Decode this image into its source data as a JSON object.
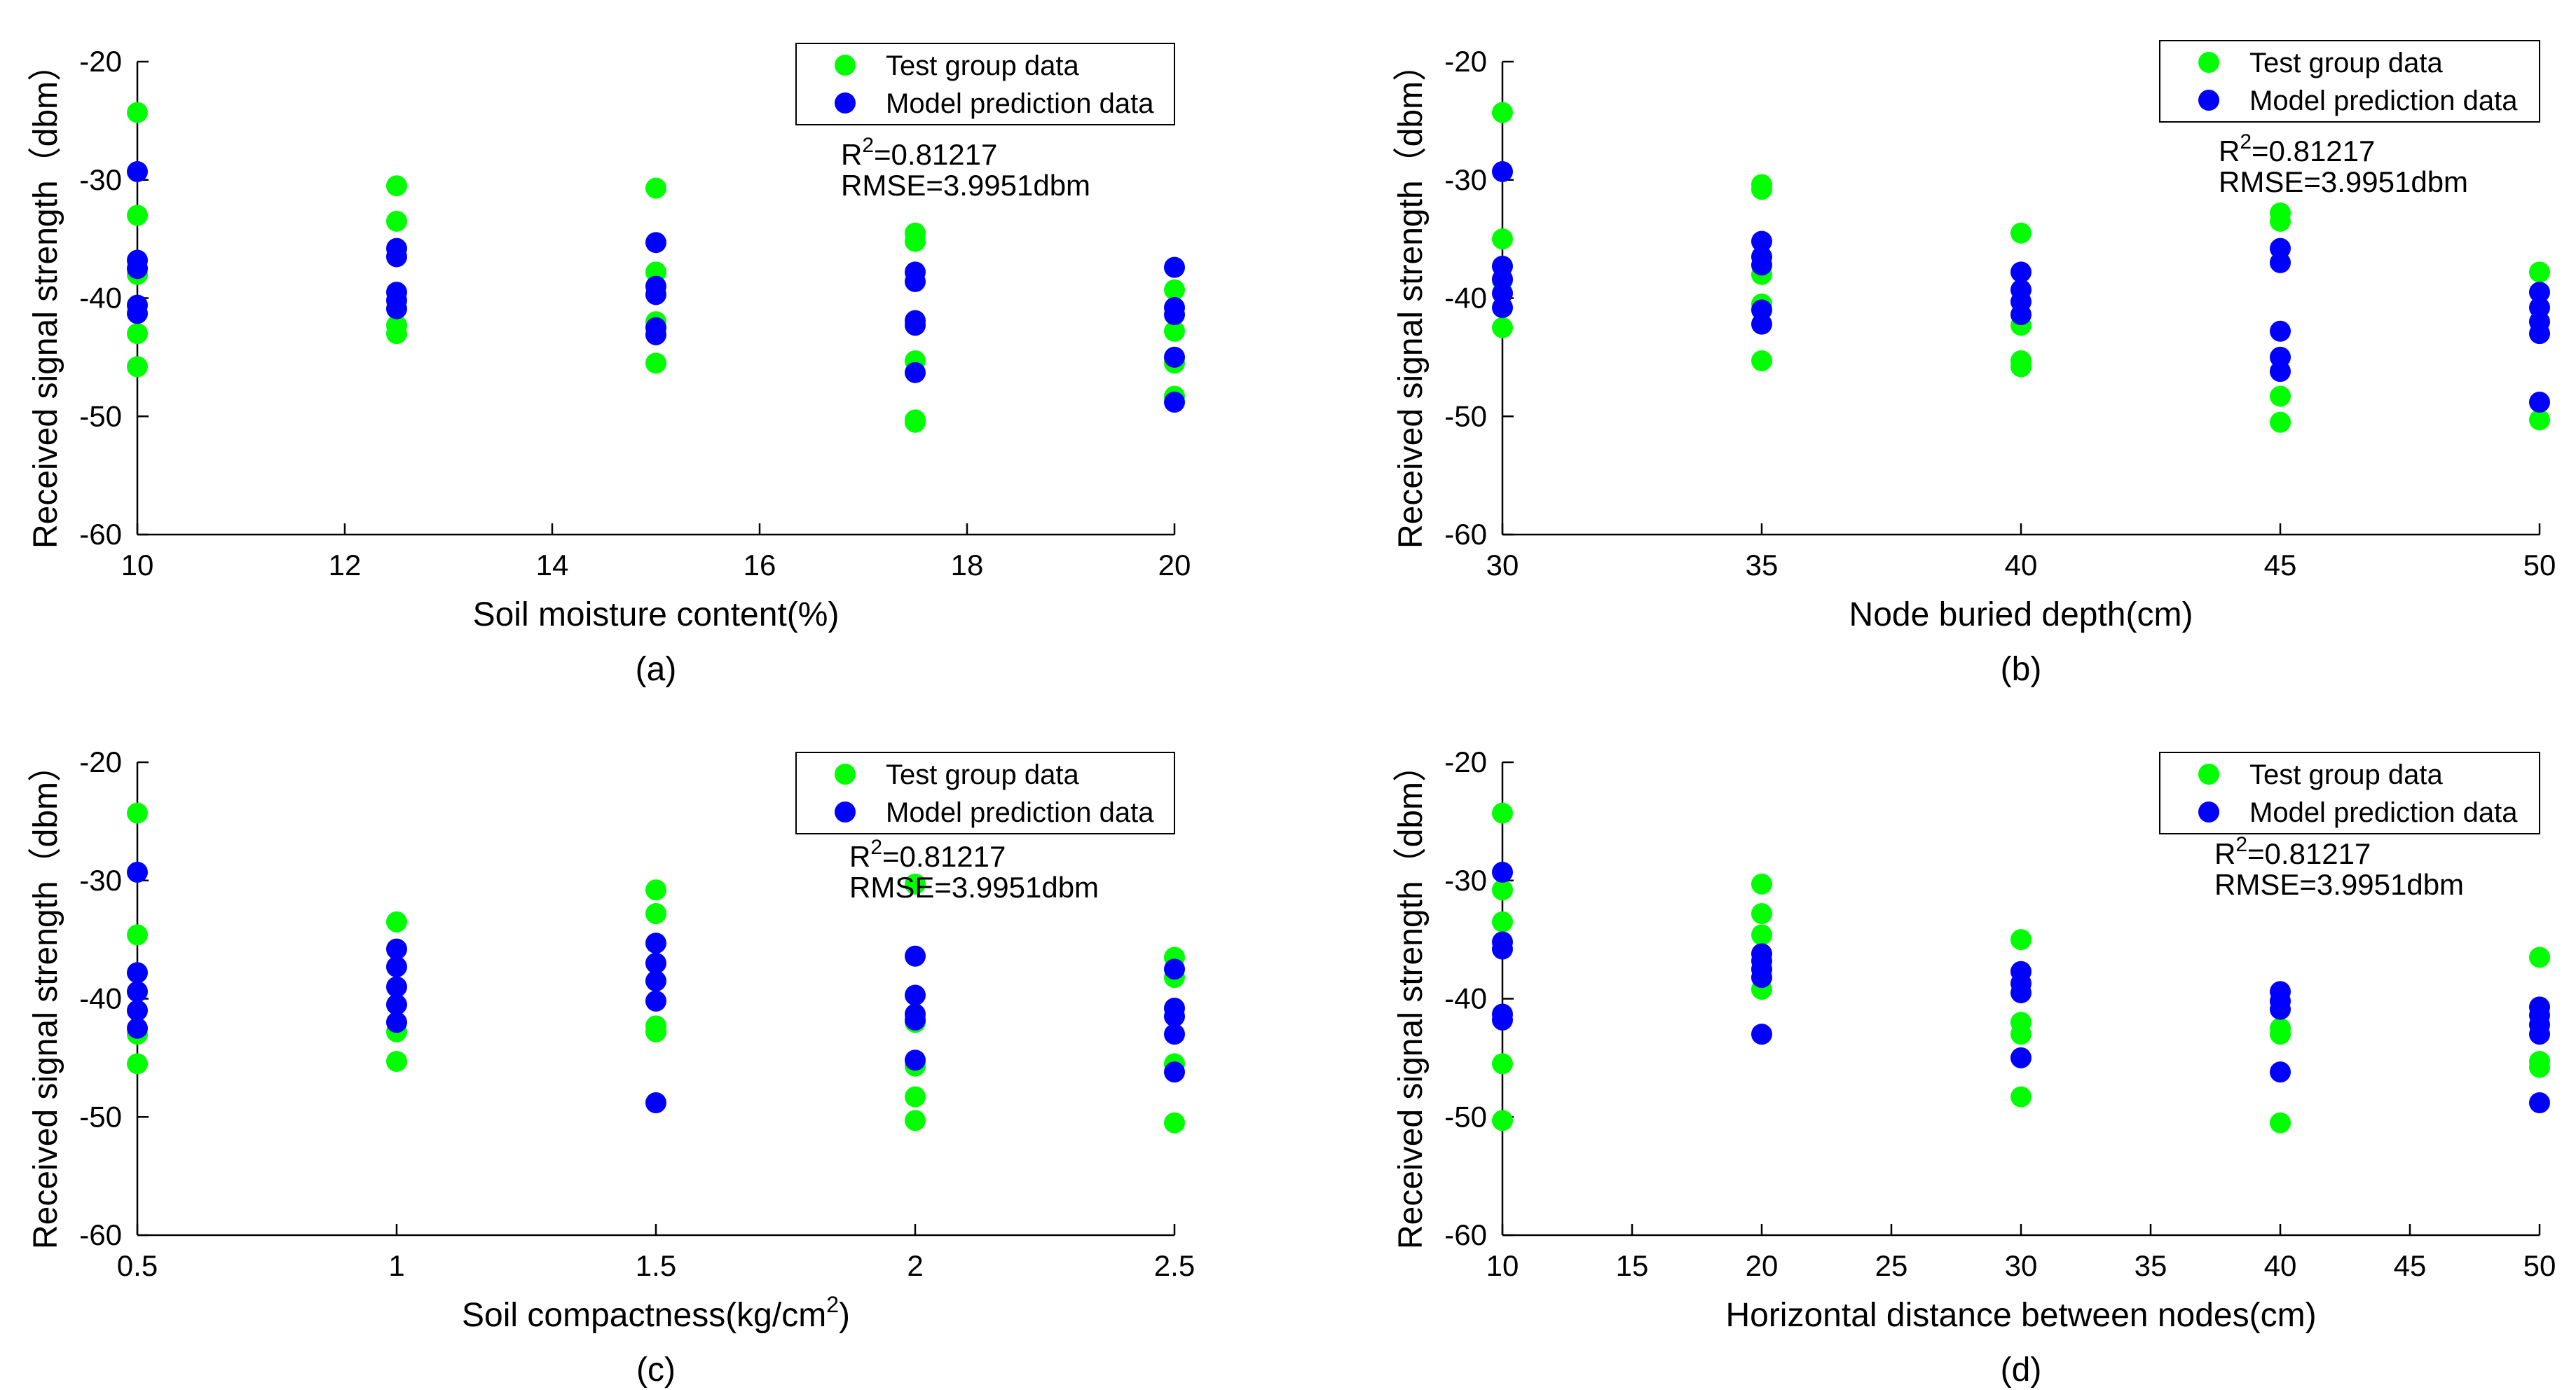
{
  "chart_data": [
    {
      "type": "scatter",
      "panel_label": "(a)",
      "xlabel": "Soil moisture content(%)",
      "ylabel": "Received signal strength（dbm）",
      "xlim": [
        10,
        20
      ],
      "ylim": [
        -60,
        -20
      ],
      "xticks": [
        10,
        12,
        14,
        16,
        18,
        20
      ],
      "xtick_labels": [
        "10",
        "12",
        "14",
        "16",
        "18",
        "20"
      ],
      "yticks": [
        -60,
        -50,
        -40,
        -30,
        -20
      ],
      "ytick_labels": [
        "-60",
        "-50",
        "-40",
        "-30",
        "-20"
      ],
      "legend": {
        "placement": "top-right"
      },
      "stats": {
        "r2_base": "R",
        "r2_sup": "2",
        "r2_value": "=0.81217",
        "rmse": "RMSE=3.9951dbm"
      },
      "series": [
        {
          "name": "Test group data",
          "color": "#00ff00",
          "points": [
            [
              10,
              -24.3
            ],
            [
              10,
              -33
            ],
            [
              10,
              -38
            ],
            [
              10,
              -43
            ],
            [
              10,
              -45.8
            ],
            [
              12.5,
              -30.5
            ],
            [
              12.5,
              -33.5
            ],
            [
              12.5,
              -42.3
            ],
            [
              12.5,
              -43
            ],
            [
              15,
              -30.7
            ],
            [
              15,
              -37.8
            ],
            [
              15,
              -42
            ],
            [
              15,
              -45.5
            ],
            [
              17.5,
              -34.5
            ],
            [
              17.5,
              -35.2
            ],
            [
              17.5,
              -45.3
            ],
            [
              17.5,
              -50.3
            ],
            [
              17.5,
              -50.5
            ],
            [
              20,
              -39.3
            ],
            [
              20,
              -42.8
            ],
            [
              20,
              -45.5
            ],
            [
              20,
              -48.3
            ]
          ]
        },
        {
          "name": "Model prediction data",
          "color": "#0000ff",
          "points": [
            [
              10,
              -29.3
            ],
            [
              10,
              -36.8
            ],
            [
              10,
              -37.5
            ],
            [
              10,
              -40.6
            ],
            [
              10,
              -41.3
            ],
            [
              12.5,
              -35.8
            ],
            [
              12.5,
              -36.5
            ],
            [
              12.5,
              -39.5
            ],
            [
              12.5,
              -40.2
            ],
            [
              12.5,
              -40.9
            ],
            [
              15,
              -35.3
            ],
            [
              15,
              -39
            ],
            [
              15,
              -39.7
            ],
            [
              15,
              -42.5
            ],
            [
              15,
              -43.1
            ],
            [
              17.5,
              -37.8
            ],
            [
              17.5,
              -38.6
            ],
            [
              17.5,
              -41.9
            ],
            [
              17.5,
              -42.3
            ],
            [
              17.5,
              -46.3
            ],
            [
              20,
              -37.4
            ],
            [
              20,
              -40.8
            ],
            [
              20,
              -41.4
            ],
            [
              20,
              -45
            ],
            [
              20,
              -48.8
            ]
          ]
        }
      ]
    },
    {
      "type": "scatter",
      "panel_label": "(b)",
      "xlabel": "Node buried depth(cm)",
      "ylabel": "Received signal strength（dbm）",
      "xlim": [
        30,
        50
      ],
      "ylim": [
        -60,
        -20
      ],
      "xticks": [
        30,
        35,
        40,
        45,
        50
      ],
      "xtick_labels": [
        "30",
        "35",
        "40",
        "45",
        "50"
      ],
      "yticks": [
        -60,
        -50,
        -40,
        -30,
        -20
      ],
      "ytick_labels": [
        "-60",
        "-50",
        "-40",
        "-30",
        "-20"
      ],
      "legend": {
        "placement": "top-right"
      },
      "stats": {
        "r2_base": "R",
        "r2_sup": "2",
        "r2_value": "=0.81217",
        "rmse": "RMSE=3.9951dbm"
      },
      "series": [
        {
          "name": "Test group data",
          "color": "#00ff00",
          "points": [
            [
              30,
              -24.3
            ],
            [
              30,
              -35
            ],
            [
              30,
              -38.5
            ],
            [
              30,
              -42.5
            ],
            [
              35,
              -30.4
            ],
            [
              35,
              -30.8
            ],
            [
              35,
              -38
            ],
            [
              35,
              -40.5
            ],
            [
              35,
              -45.3
            ],
            [
              40,
              -34.5
            ],
            [
              40,
              -42.3
            ],
            [
              40,
              -45.3
            ],
            [
              40,
              -45.8
            ],
            [
              45,
              -32.8
            ],
            [
              45,
              -33.5
            ],
            [
              45,
              -48.3
            ],
            [
              45,
              -50.5
            ],
            [
              50,
              -37.8
            ],
            [
              50,
              -50.3
            ]
          ]
        },
        {
          "name": "Model prediction data",
          "color": "#0000ff",
          "points": [
            [
              30,
              -29.3
            ],
            [
              30,
              -37.3
            ],
            [
              30,
              -38.4
            ],
            [
              30,
              -39.6
            ],
            [
              30,
              -40.8
            ],
            [
              35,
              -35.2
            ],
            [
              35,
              -36.5
            ],
            [
              35,
              -37.2
            ],
            [
              35,
              -41
            ],
            [
              35,
              -42.2
            ],
            [
              40,
              -37.8
            ],
            [
              40,
              -39.3
            ],
            [
              40,
              -40.3
            ],
            [
              40,
              -41.4
            ],
            [
              45,
              -35.8
            ],
            [
              45,
              -37
            ],
            [
              45,
              -42.8
            ],
            [
              45,
              -45
            ],
            [
              45,
              -46.2
            ],
            [
              50,
              -39.5
            ],
            [
              50,
              -40.8
            ],
            [
              50,
              -42
            ],
            [
              50,
              -43
            ],
            [
              50,
              -48.8
            ]
          ]
        }
      ]
    },
    {
      "type": "scatter",
      "panel_label": "(c)",
      "xlabel_base": "Soil compactness(kg/cm",
      "xlabel_sup": "2",
      "xlabel_end": ")",
      "ylabel": "Received signal strength（dbm）",
      "xlim": [
        0.5,
        2.5
      ],
      "ylim": [
        -60,
        -20
      ],
      "xticks": [
        0.5,
        1,
        1.5,
        2,
        2.5
      ],
      "xtick_labels": [
        "0.5",
        "1",
        "1.5",
        "2",
        "2.5"
      ],
      "yticks": [
        -60,
        -50,
        -40,
        -30,
        -20
      ],
      "ytick_labels": [
        "-60",
        "-50",
        "-40",
        "-30",
        "-20"
      ],
      "legend": {
        "placement": "top-right"
      },
      "stats": {
        "r2_base": "R",
        "r2_sup": "2",
        "r2_value": "=0.81217",
        "rmse": "RMSE=3.9951dbm"
      },
      "series": [
        {
          "name": "Test group data",
          "color": "#00ff00",
          "points": [
            [
              0.5,
              -24.3
            ],
            [
              0.5,
              -34.6
            ],
            [
              0.5,
              -43
            ],
            [
              0.5,
              -45.5
            ],
            [
              1,
              -33.5
            ],
            [
              1,
              -42.8
            ],
            [
              1,
              -45.3
            ],
            [
              1.5,
              -30.8
            ],
            [
              1.5,
              -32.8
            ],
            [
              1.5,
              -42.3
            ],
            [
              1.5,
              -42.8
            ],
            [
              2,
              -30.3
            ],
            [
              2,
              -42
            ],
            [
              2,
              -45.7
            ],
            [
              2,
              -48.3
            ],
            [
              2,
              -50.3
            ],
            [
              2.5,
              -36.5
            ],
            [
              2.5,
              -38.2
            ],
            [
              2.5,
              -45.5
            ],
            [
              2.5,
              -50.5
            ]
          ]
        },
        {
          "name": "Model prediction data",
          "color": "#0000ff",
          "points": [
            [
              0.5,
              -29.3
            ],
            [
              0.5,
              -37.8
            ],
            [
              0.5,
              -39.4
            ],
            [
              0.5,
              -41
            ],
            [
              0.5,
              -42.5
            ],
            [
              1,
              -35.8
            ],
            [
              1,
              -37.3
            ],
            [
              1,
              -39
            ],
            [
              1,
              -40.5
            ],
            [
              1,
              -42
            ],
            [
              1.5,
              -35.3
            ],
            [
              1.5,
              -37
            ],
            [
              1.5,
              -38.5
            ],
            [
              1.5,
              -40.2
            ],
            [
              1.5,
              -48.8
            ],
            [
              2,
              -36.4
            ],
            [
              2,
              -39.7
            ],
            [
              2,
              -41.3
            ],
            [
              2,
              -41.8
            ],
            [
              2,
              -45.2
            ],
            [
              2.5,
              -37.5
            ],
            [
              2.5,
              -40.8
            ],
            [
              2.5,
              -41.5
            ],
            [
              2.5,
              -43
            ],
            [
              2.5,
              -46.2
            ]
          ]
        }
      ]
    },
    {
      "type": "scatter",
      "panel_label": "(d)",
      "xlabel": "Horizontal distance between nodes(cm)",
      "ylabel": "Received signal strength（dbm）",
      "xlim": [
        10,
        50
      ],
      "ylim": [
        -60,
        -20
      ],
      "xticks": [
        10,
        15,
        20,
        25,
        30,
        35,
        40,
        45,
        50
      ],
      "xtick_labels": [
        "10",
        "15",
        "20",
        "25",
        "30",
        "35",
        "40",
        "45",
        "50"
      ],
      "yticks": [
        -60,
        -50,
        -40,
        -30,
        -20
      ],
      "ytick_labels": [
        "-60",
        "-50",
        "-40",
        "-30",
        "-20"
      ],
      "legend": {
        "placement": "top-right"
      },
      "stats": {
        "r2_base": "R",
        "r2_sup": "2",
        "r2_value": "=0.81217",
        "rmse": "RMSE=3.9951dbm"
      },
      "series": [
        {
          "name": "Test group data",
          "color": "#00ff00",
          "points": [
            [
              10,
              -24.3
            ],
            [
              10,
              -30.8
            ],
            [
              10,
              -33.5
            ],
            [
              10,
              -45.5
            ],
            [
              10,
              -50.3
            ],
            [
              20,
              -30.3
            ],
            [
              20,
              -32.8
            ],
            [
              20,
              -34.6
            ],
            [
              20,
              -39.2
            ],
            [
              30,
              -35
            ],
            [
              30,
              -42
            ],
            [
              30,
              -43
            ],
            [
              30,
              -48.3
            ],
            [
              40,
              -42.5
            ],
            [
              40,
              -43
            ],
            [
              40,
              -50.5
            ],
            [
              50,
              -36.5
            ],
            [
              50,
              -45.3
            ],
            [
              50,
              -45.8
            ]
          ]
        },
        {
          "name": "Model prediction data",
          "color": "#0000ff",
          "points": [
            [
              10,
              -29.3
            ],
            [
              10,
              -35.2
            ],
            [
              10,
              -35.8
            ],
            [
              10,
              -41.3
            ],
            [
              10,
              -41.8
            ],
            [
              20,
              -36.2
            ],
            [
              20,
              -36.8
            ],
            [
              20,
              -37.5
            ],
            [
              20,
              -38.2
            ],
            [
              20,
              -43
            ],
            [
              30,
              -37.7
            ],
            [
              30,
              -38.7
            ],
            [
              30,
              -39.5
            ],
            [
              30,
              -45
            ],
            [
              40,
              -39.4
            ],
            [
              40,
              -40.2
            ],
            [
              40,
              -40.9
            ],
            [
              40,
              -46.2
            ],
            [
              50,
              -40.7
            ],
            [
              50,
              -41.4
            ],
            [
              50,
              -42.2
            ],
            [
              50,
              -43
            ],
            [
              50,
              -48.8
            ]
          ]
        }
      ]
    }
  ]
}
